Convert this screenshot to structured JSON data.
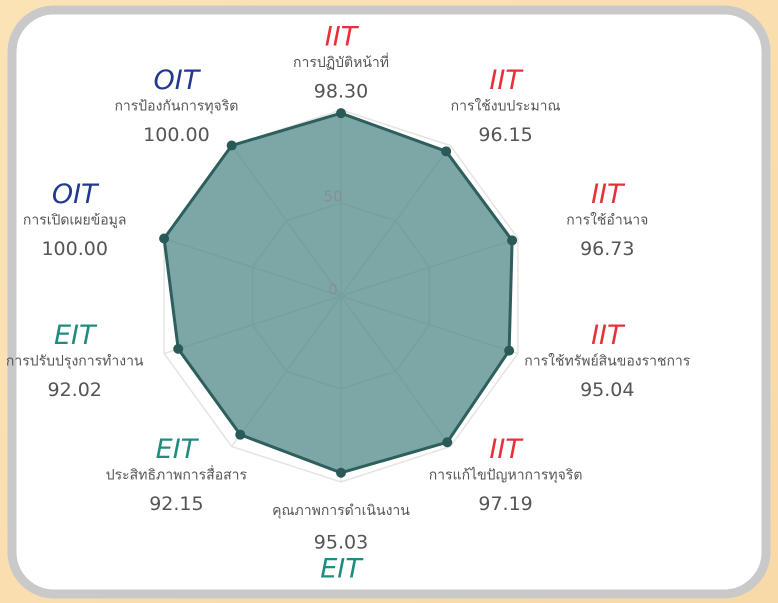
{
  "chart_data": {
    "type": "radar",
    "categories": [
      "การปฏิบัติหน้าที่",
      "การใช้งบประมาณ",
      "การใช้อำนาจ",
      "การใช้ทรัพย์สินของราชการ",
      "การแก้ไขปัญหาการทุจริต",
      "คุณภาพการดำเนินงาน",
      "ประสิทธิภาพการสื่อสาร",
      "การปรับปรุงการทำงาน",
      "การเปิดเผยข้อมูล",
      "การป้องกันการทุจริต"
    ],
    "groups": [
      "IIT",
      "IIT",
      "IIT",
      "IIT",
      "IIT",
      "EIT",
      "EIT",
      "EIT",
      "OIT",
      "OIT"
    ],
    "group_colors": [
      "#e8303a",
      "#e8303a",
      "#e8303a",
      "#e8303a",
      "#e8303a",
      "#1f8c7e",
      "#1f8c7e",
      "#1f8c7e",
      "#23398f",
      "#23398f"
    ],
    "values": [
      98.3,
      96.15,
      96.73,
      95.04,
      97.19,
      95.03,
      92.15,
      92.02,
      100,
      100
    ],
    "value_labels": [
      "98.30",
      "96.15",
      "96.73",
      "95.04",
      "97.19",
      "95.03",
      "92.15",
      "92.02",
      "100.00",
      "100.00"
    ],
    "color": "#4a8583",
    "rlim": [
      0,
      100
    ],
    "rticks": [
      0,
      50
    ],
    "grid": true
  }
}
